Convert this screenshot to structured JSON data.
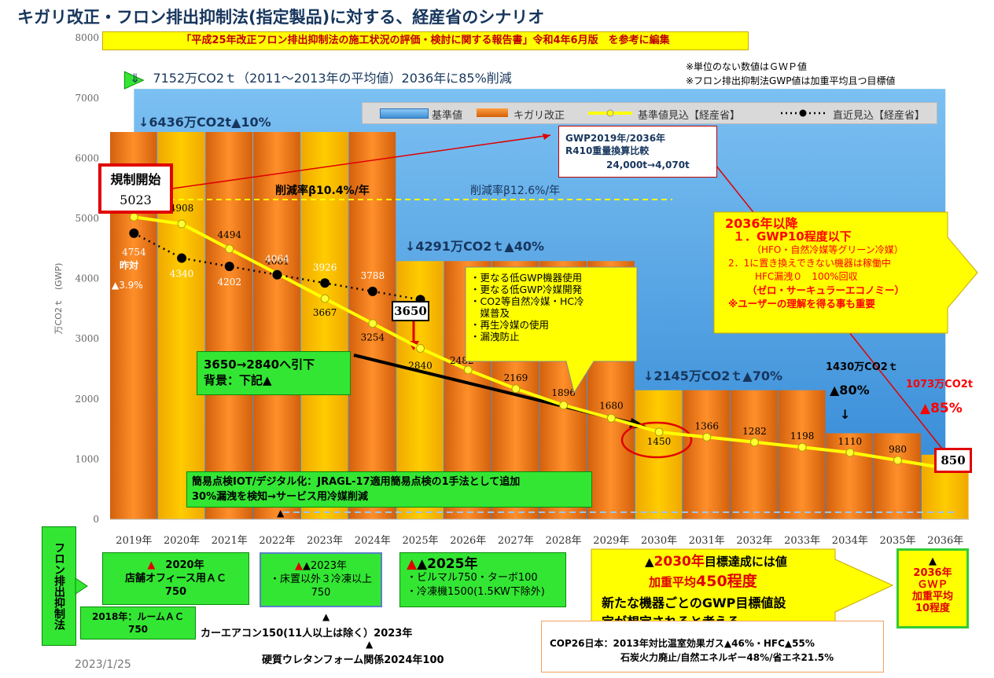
{
  "title": "キガリ改正・フロン排出抑制法(指定製品)に対する、経産省のシナリオ",
  "reference": "「平成25年改正フロン排出抑制法の施工状況の評価・検討に関する報告書」令和4年6月版　を参考に編集",
  "notes": [
    "※単位のない数値はＧＷＰ値",
    "※フロン排出抑制法GWP値は加重平均且つ目標値"
  ],
  "baseline_text": "⇓　7152万CO2ｔ（2011～2013年の平均値）2036年に85%削減",
  "legend": [
    "基準値",
    "キガリ改正",
    "基準値見込【経産省】",
    "直近見込【経産省】"
  ],
  "labels": {
    "l10": "↓6436万CO2t▲10%",
    "l40": "↓4291万CO2ｔ▲40%",
    "l70": "↓2145万CO2ｔ▲70%",
    "l80a": "1430万CO2ｔ",
    "l80b": "▲80%",
    "arrow_down": "↓",
    "l85a": "1073万CO2t",
    "l85b": "▲85%",
    "start_title": "規制開始",
    "start_val": "5023",
    "rate1": "削減率β10.4%/年",
    "rate2": "削減率β12.6%/年",
    "lastyear": "昨対",
    "lastyear_pct": "▲3.9%",
    "box3650": "3650",
    "box850": "850"
  },
  "gwp_box": {
    "l1": "GWP2019年/2036年",
    "l2": "R410重量換算比較",
    "l3": "24,000t→4,070t"
  },
  "callout": [
    "・更なる低GWP機器使用",
    "・更なる低GWP冷媒開発",
    "・CO2等自然冷媒・HC冷",
    "　媒普及",
    "・再生冷媒の使用",
    "・漏洩防止"
  ],
  "after2036": {
    "t": "2036年以降",
    "a": "１．GWP10程度以下",
    "b": "（HFO・自然冷媒等グリーン冷媒）",
    "c": "2．1に置き換えできない機器は稼働中",
    "d": "HFC漏洩０　100%回収",
    "e": "（ゼロ・サーキュラーエコノミー）",
    "f": "※ユーザーの理解を得る事も重要"
  },
  "green_3650": {
    "a": "3650→2840へ引下",
    "b": "背景：下記▲"
  },
  "green_iot": {
    "a": "簡易点検IOT/デジタル化：JRAGL-17適用簡易点検の1手法として追加",
    "b": "30%漏洩を検知→サービス用冷媒削減"
  },
  "side_label": "フロン排出抑制法",
  "box2020": {
    "a": "▲",
    "b": "2020年",
    "c": "店舗オフィース用ＡＣ",
    "d": "750"
  },
  "box2018": {
    "a": "2018年：ルームＡＣ",
    "b": "750"
  },
  "box2023": {
    "a": "▲2023年",
    "b": "・床置以外３冷凍以上",
    "c": "750"
  },
  "box2025": {
    "a": "▲2025年",
    "b": "・ビルマル750・ターボ100",
    "c": "・冷凍機1500(1.5KW下除外)"
  },
  "car": "カーエアコン150(11人以上は除く）2023年",
  "urethane": "硬質ウレタンフォーム関係2024年100",
  "tri": "▲",
  "box2030": {
    "a1": "▲",
    "a2": "2030年",
    "a3": "目標達成には値",
    "b1": "加重平均",
    "b2": "450程度",
    "c": "新たな機器ごとのGWP目標値設",
    "d": "定が想定されると考える"
  },
  "box2036": {
    "a": "▲",
    "b": "2036年",
    "c": "ＧＷＰ",
    "d": "加重平均",
    "e": "10程度"
  },
  "cop": {
    "a": "COP26日本：2013年対比温室効果ガス▲46%・HFC▲55%",
    "b": "石炭火力廃止/自然エネルギー48%/省エネ21.5%"
  },
  "date": "2023/1/25",
  "chart_data": {
    "type": "bar",
    "title": "",
    "ylabel": "万CO2ｔ　(GWP)",
    "ylim": [
      0,
      8000
    ],
    "yticks": [
      0,
      1000,
      2000,
      3000,
      4000,
      5000,
      6000,
      7000,
      8000
    ],
    "categories": [
      "2019年",
      "2020年",
      "2021年",
      "2022年",
      "2023年",
      "2024年",
      "2025年",
      "2026年",
      "2027年",
      "2028年",
      "2029年",
      "2030年",
      "2031年",
      "2032年",
      "2033年",
      "2034年",
      "2035年",
      "2036年"
    ],
    "series": [
      {
        "name": "基準値",
        "type": "area",
        "values": [
          7152,
          7152,
          7152,
          7152,
          7152,
          7152,
          7152,
          7152,
          7152,
          7152,
          7152,
          7152,
          7152,
          7152,
          7152,
          7152,
          7152,
          7152
        ]
      },
      {
        "name": "キガリ改正",
        "type": "bar",
        "values": [
          6436,
          6436,
          6436,
          6436,
          6436,
          6436,
          4291,
          4291,
          4291,
          4291,
          4291,
          2145,
          2145,
          2145,
          2145,
          1430,
          1430,
          1073
        ]
      },
      {
        "name": "基準値見込【経産省】",
        "type": "line",
        "values": [
          5023,
          4908,
          4494,
          4081,
          3667,
          3254,
          2840,
          2482,
          2169,
          1896,
          1680,
          1450,
          1366,
          1282,
          1198,
          1110,
          980,
          850
        ]
      },
      {
        "name": "直近見込【経産省】",
        "type": "line",
        "values": [
          4754,
          4340,
          4202,
          4064,
          3926,
          3788,
          3650,
          null,
          null,
          null,
          null,
          null,
          null,
          null,
          null,
          null,
          null,
          null
        ]
      }
    ],
    "colors": {
      "base": "#4f9fe0",
      "kigali": "#f07d1c",
      "kigali_alt": "#ffc000",
      "line_baseline": "#ffff00",
      "line_recent": "#000000"
    }
  }
}
